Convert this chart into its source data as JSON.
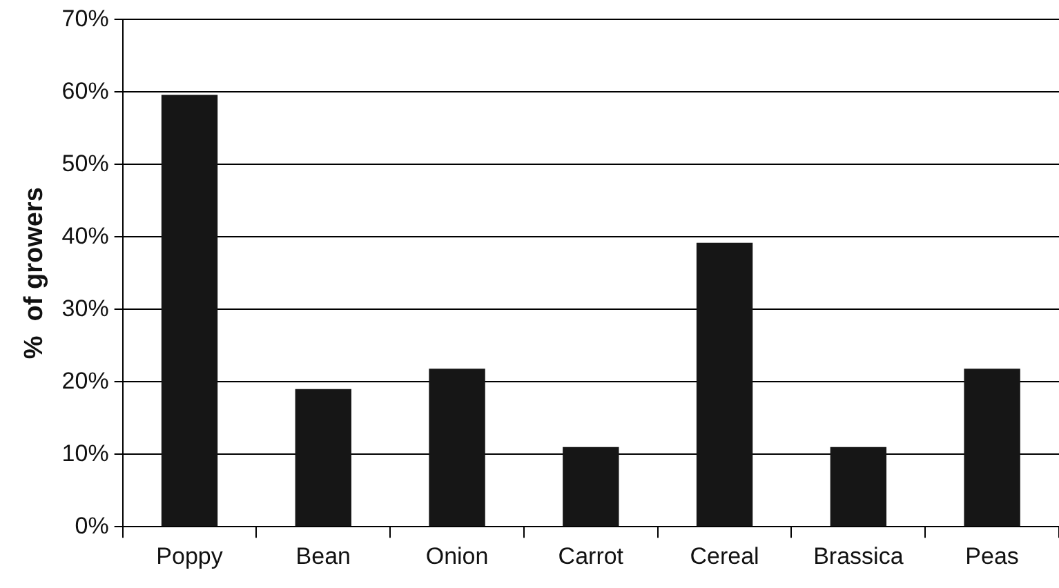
{
  "chart_data": {
    "type": "bar",
    "ylabel": "%  of growers",
    "categories": [
      "Poppy",
      "Bean",
      "Onion",
      "Carrot",
      "Cereal",
      "Brassica",
      "Peas"
    ],
    "values": [
      59.6,
      19.0,
      21.8,
      11.0,
      39.2,
      11.0,
      21.8
    ],
    "color": "#161616",
    "ylim": [
      0,
      70
    ],
    "yticks": [
      {
        "value": 0,
        "label": "0%"
      },
      {
        "value": 10,
        "label": "10%"
      },
      {
        "value": 20,
        "label": "20%"
      },
      {
        "value": 30,
        "label": "30%"
      },
      {
        "value": 40,
        "label": "40%"
      },
      {
        "value": 50,
        "label": "50%"
      },
      {
        "value": 60,
        "label": "60%"
      },
      {
        "value": 70,
        "label": "70%"
      }
    ],
    "grid": "y",
    "legend": false
  }
}
